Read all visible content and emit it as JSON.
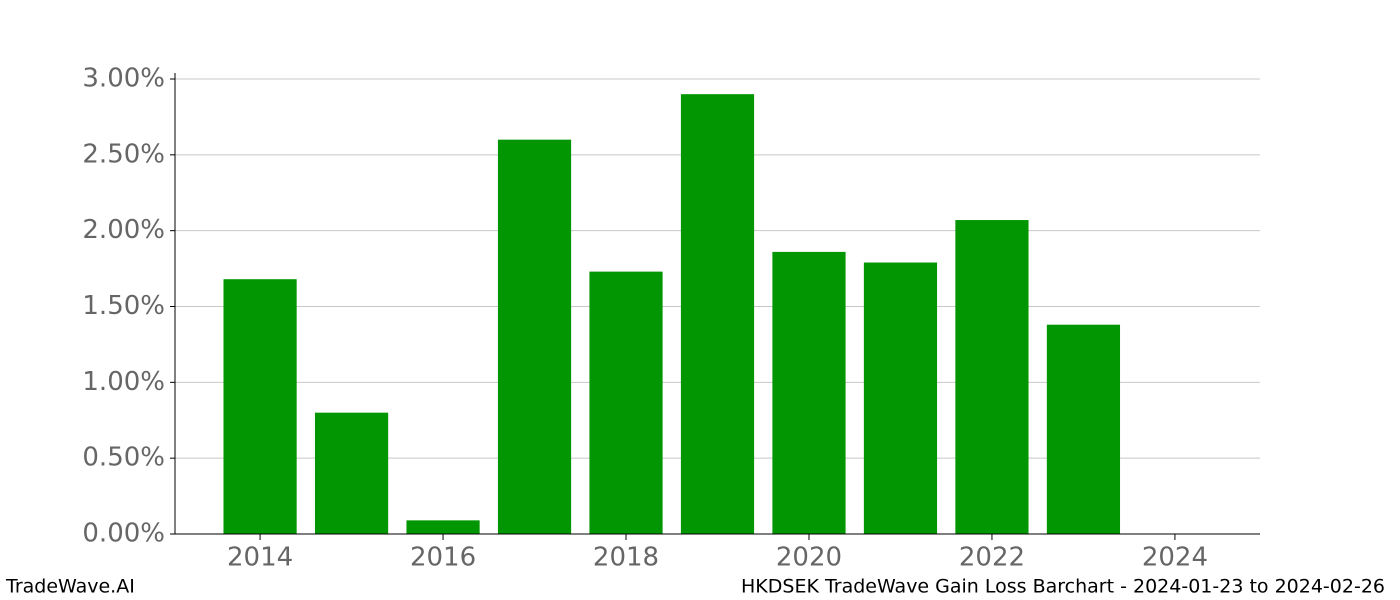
{
  "chart_data": {
    "type": "bar",
    "x": [
      2014,
      2015,
      2016,
      2017,
      2018,
      2019,
      2020,
      2021,
      2022,
      2023
    ],
    "values": [
      1.68,
      0.8,
      0.09,
      2.6,
      1.73,
      2.9,
      1.86,
      1.79,
      2.07,
      1.38
    ],
    "color": "#029702",
    "xlim": [
      2013.07,
      2024.93
    ],
    "xticks": [
      2014,
      2016,
      2018,
      2020,
      2022,
      2024
    ],
    "ylim": [
      0,
      3
    ],
    "yticks": [
      {
        "value": 0,
        "label": "0.00%"
      },
      {
        "value": 0.5,
        "label": "0.50%"
      },
      {
        "value": 1,
        "label": "1.00%"
      },
      {
        "value": 1.5,
        "label": "1.50%"
      },
      {
        "value": 2,
        "label": "2.00%"
      },
      {
        "value": 2.5,
        "label": "2.50%"
      },
      {
        "value": 3,
        "label": "3.00%"
      }
    ],
    "grid": true
  },
  "footer": {
    "left": "TradeWave.AI",
    "right": "HKDSEK TradeWave Gain Loss Barchart - 2024-01-23 to 2024-02-26"
  }
}
